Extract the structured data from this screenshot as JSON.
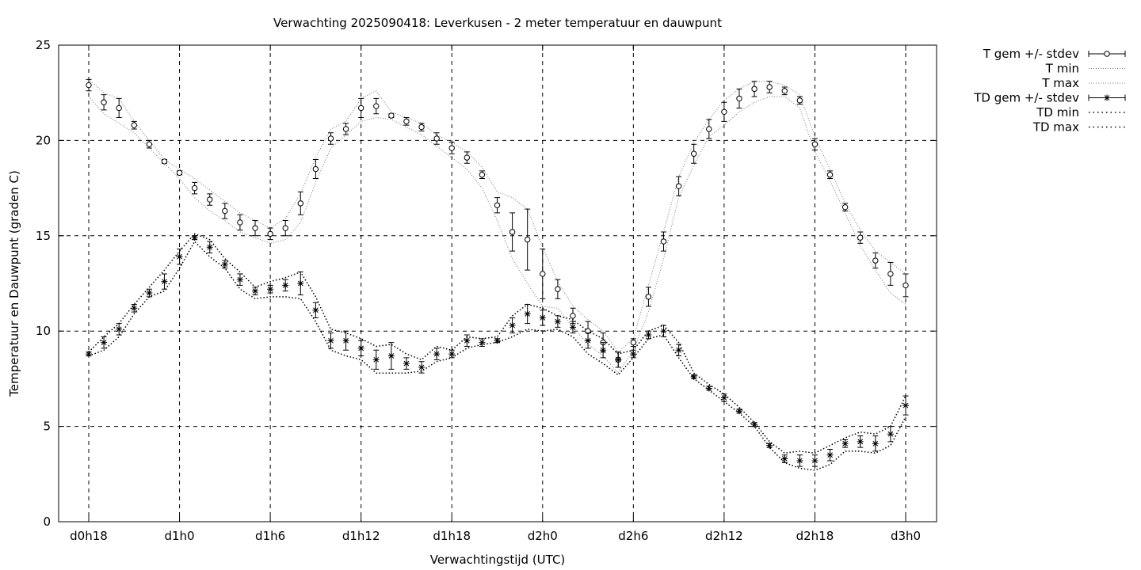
{
  "chart_data": {
    "type": "line",
    "title": "Verwachting 2025090418: Leverkusen - 2 meter temperatuur en dauwpunt",
    "xlabel": "Verwachtingstijd (UTC)",
    "ylabel": "Temperatuur en Dauwpunt (graden C)",
    "xlim": [
      0,
      54
    ],
    "ylim": [
      0,
      25
    ],
    "grid": true,
    "legend_position": "outside-top-right",
    "x_tick_labels": [
      "d0h18",
      "d1h0",
      "d1h6",
      "d1h12",
      "d1h18",
      "d2h0",
      "d2h6",
      "d2h12",
      "d2h18",
      "d3h0"
    ],
    "x_tick_values": [
      0,
      6,
      12,
      18,
      24,
      30,
      36,
      42,
      48,
      54
    ],
    "y_tick_values": [
      0,
      5,
      10,
      15,
      20,
      25
    ],
    "x": [
      0,
      1,
      2,
      3,
      4,
      5,
      6,
      7,
      8,
      9,
      10,
      11,
      12,
      13,
      14,
      15,
      16,
      17,
      18,
      19,
      20,
      21,
      22,
      23,
      24,
      25,
      26,
      27,
      28,
      29,
      30,
      31,
      32,
      33,
      34,
      35,
      36,
      37,
      38,
      39,
      40,
      41,
      42,
      43,
      44,
      45,
      46,
      47,
      48,
      49,
      50,
      51,
      52,
      53,
      54
    ],
    "series": [
      {
        "name": "T gem +/- stdev",
        "marker": "open-circle",
        "values": [
          22.9,
          22.0,
          21.7,
          20.8,
          19.8,
          18.9,
          18.3,
          17.5,
          16.9,
          16.3,
          15.7,
          15.4,
          15.1,
          15.4,
          16.7,
          18.5,
          20.1,
          20.6,
          21.7,
          21.8,
          21.3,
          21.0,
          20.7,
          20.1,
          19.6,
          19.1,
          18.2,
          16.6,
          15.2,
          14.8,
          13.0,
          12.2,
          10.8,
          10.0,
          9.4,
          8.5,
          9.4,
          11.8,
          14.7,
          17.6,
          19.3,
          20.6,
          21.5,
          22.2,
          22.7,
          22.8,
          22.6,
          22.1,
          19.8,
          18.2,
          16.5,
          14.9,
          13.7,
          13.0,
          12.4
        ],
        "stdev": [
          0.3,
          0.4,
          0.5,
          0.2,
          0.2,
          0.1,
          0.1,
          0.3,
          0.3,
          0.4,
          0.4,
          0.4,
          0.3,
          0.4,
          0.6,
          0.5,
          0.3,
          0.3,
          0.5,
          0.4,
          0.1,
          0.2,
          0.2,
          0.3,
          0.3,
          0.3,
          0.2,
          0.4,
          1.0,
          1.6,
          1.3,
          0.5,
          0.4,
          0.5,
          0.5,
          0.4,
          0.2,
          0.5,
          0.5,
          0.5,
          0.5,
          0.5,
          0.5,
          0.5,
          0.4,
          0.3,
          0.2,
          0.2,
          0.3,
          0.2,
          0.2,
          0.3,
          0.4,
          0.6,
          0.6
        ]
      },
      {
        "name": "T min",
        "style": "dotted",
        "values": [
          22.3,
          21.4,
          20.9,
          20.4,
          19.6,
          18.8,
          18.0,
          17.0,
          16.3,
          15.8,
          15.2,
          14.9,
          14.6,
          14.8,
          15.7,
          17.8,
          19.6,
          20.3,
          21.0,
          21.2,
          21.1,
          20.7,
          20.3,
          19.7,
          19.1,
          18.5,
          17.5,
          15.8,
          13.8,
          12.5,
          11.3,
          11.2,
          10.2,
          9.3,
          8.7,
          7.8,
          9.0,
          11.0,
          13.8,
          17.0,
          18.7,
          20.2,
          20.8,
          21.5,
          22.0,
          22.3,
          22.3,
          21.7,
          19.4,
          17.9,
          16.2,
          14.5,
          13.2,
          12.0,
          11.4
        ]
      },
      {
        "name": "T max",
        "style": "dotted",
        "values": [
          23.2,
          22.5,
          22.2,
          21.0,
          20.0,
          19.0,
          18.5,
          18.0,
          17.4,
          16.8,
          16.2,
          15.8,
          15.4,
          15.9,
          17.2,
          19.1,
          20.6,
          21.0,
          22.2,
          22.6,
          21.5,
          21.2,
          20.9,
          20.3,
          19.9,
          19.4,
          18.6,
          17.3,
          17.0,
          16.4,
          14.4,
          12.6,
          11.3,
          10.6,
          10.0,
          8.9,
          9.6,
          12.4,
          15.2,
          18.1,
          19.9,
          21.1,
          22.1,
          22.7,
          23.1,
          23.1,
          22.9,
          22.4,
          20.2,
          18.5,
          16.7,
          15.3,
          14.2,
          13.6,
          13.0
        ]
      },
      {
        "name": "TD gem +/- stdev",
        "marker": "star",
        "values": [
          8.8,
          9.4,
          10.1,
          11.2,
          12.0,
          12.6,
          13.9,
          14.9,
          14.4,
          13.5,
          12.7,
          12.1,
          12.2,
          12.4,
          12.5,
          11.1,
          9.5,
          9.5,
          9.1,
          8.5,
          8.7,
          8.3,
          8.1,
          8.8,
          8.8,
          9.5,
          9.4,
          9.5,
          10.3,
          10.9,
          10.7,
          10.5,
          10.2,
          9.5,
          9.0,
          8.5,
          8.8,
          9.8,
          10.0,
          9.0,
          7.6,
          7.0,
          6.5,
          5.8,
          5.1,
          4.0,
          3.3,
          3.2,
          3.2,
          3.5,
          4.1,
          4.2,
          4.1,
          4.6,
          6.1
        ],
        "stdev": [
          0.1,
          0.3,
          0.3,
          0.2,
          0.2,
          0.4,
          0.4,
          0.1,
          0.3,
          0.2,
          0.3,
          0.2,
          0.2,
          0.3,
          0.6,
          0.4,
          0.4,
          0.5,
          0.4,
          0.5,
          0.7,
          0.3,
          0.3,
          0.3,
          0.2,
          0.3,
          0.2,
          0.1,
          0.4,
          0.5,
          0.4,
          0.3,
          0.3,
          0.4,
          0.4,
          0.4,
          0.2,
          0.2,
          0.3,
          0.3,
          0.1,
          0.1,
          0.2,
          0.1,
          0.1,
          0.1,
          0.2,
          0.3,
          0.3,
          0.3,
          0.2,
          0.3,
          0.4,
          0.4,
          0.5
        ]
      },
      {
        "name": "TD min",
        "style": "dotted",
        "values": [
          8.7,
          9.0,
          9.7,
          10.9,
          11.8,
          12.1,
          13.3,
          14.7,
          13.9,
          13.3,
          12.2,
          11.7,
          11.8,
          11.8,
          11.7,
          10.5,
          9.0,
          8.7,
          8.5,
          7.8,
          7.8,
          7.8,
          7.9,
          8.4,
          8.6,
          9.1,
          9.3,
          9.4,
          9.7,
          10.1,
          10.0,
          10.1,
          9.7,
          8.8,
          8.3,
          7.7,
          8.6,
          9.6,
          9.8,
          8.6,
          7.5,
          6.9,
          6.3,
          5.7,
          5.0,
          3.9,
          3.1,
          2.8,
          2.7,
          3.0,
          3.7,
          3.7,
          3.6,
          4.0,
          5.5
        ]
      },
      {
        "name": "TD max",
        "style": "dotted",
        "values": [
          8.9,
          9.7,
          10.4,
          11.4,
          12.3,
          13.2,
          14.2,
          15.1,
          14.8,
          13.8,
          13.1,
          12.3,
          12.6,
          12.8,
          13.1,
          11.8,
          10.1,
          9.9,
          9.6,
          9.2,
          9.3,
          8.8,
          8.5,
          9.2,
          9.0,
          9.7,
          9.6,
          9.7,
          10.8,
          11.4,
          11.2,
          10.8,
          10.6,
          10.0,
          9.6,
          8.8,
          9.0,
          10.0,
          10.3,
          9.4,
          7.8,
          7.2,
          6.7,
          6.0,
          5.2,
          4.2,
          3.6,
          3.7,
          3.6,
          4.0,
          4.4,
          4.7,
          4.6,
          5.0,
          6.6
        ]
      }
    ]
  }
}
